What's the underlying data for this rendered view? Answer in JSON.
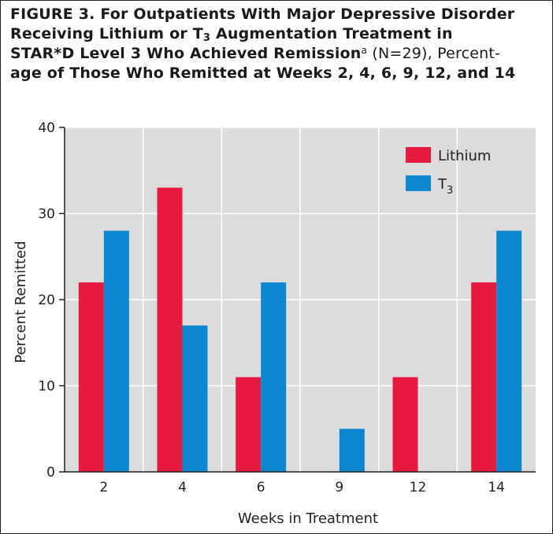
{
  "title": {
    "line1": "FIGURE 3. For Outpatients With Major Depressive Disorder",
    "line2_a": "Receiving Lithium or T",
    "line2_sub": "3",
    "line2_b": " Augmentation Treatment in",
    "line3_a": "STAR*D Level 3 Who Achieved Remission",
    "line3_sup": "a",
    "line3_b": " (N=29), Percent-",
    "line4": "age of Those Who Remitted at Weeks 2, 4, 6, 9, 12, and 14"
  },
  "chart_data": {
    "type": "bar",
    "xlabel": "Weeks in Treatment",
    "ylabel": "Percent Remitted",
    "categories": [
      "2",
      "4",
      "6",
      "9",
      "12",
      "14"
    ],
    "ylim": [
      0,
      40
    ],
    "yticks": [
      0,
      10,
      20,
      30,
      40
    ],
    "grid": true,
    "legend_position": "top-right",
    "series": [
      {
        "name": "Lithium",
        "color": "#e8193f",
        "values": [
          22,
          33,
          11,
          0,
          11,
          22
        ]
      },
      {
        "name": "T",
        "name_sub": "3",
        "color": "#0a87cf",
        "values": [
          28,
          17,
          22,
          5,
          0,
          28
        ]
      }
    ]
  }
}
